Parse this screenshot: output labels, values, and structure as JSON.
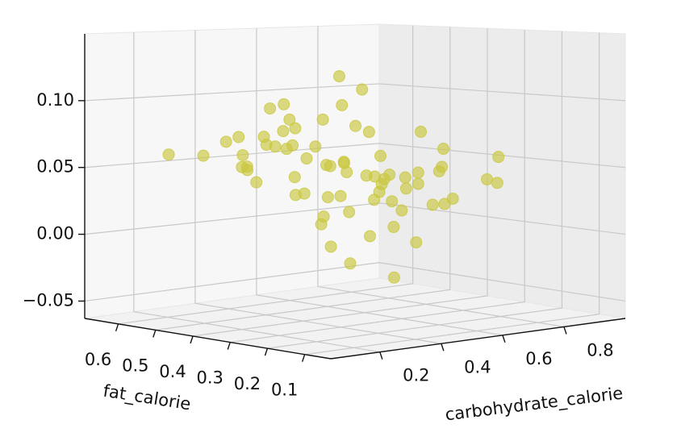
{
  "chart_data": {
    "type": "scatter3d",
    "x_label": "carbohydrate_calorie",
    "y_label": "fat_calorie",
    "xlim": [
      0.04,
      1.0
    ],
    "ylim": [
      0.03,
      0.69
    ],
    "zlim": [
      -0.063,
      0.15
    ],
    "xticks": [
      0.2,
      0.4,
      0.6,
      0.8
    ],
    "yticks": [
      0.1,
      0.2,
      0.3,
      0.4,
      0.5,
      0.6
    ],
    "zticks": [
      {
        "value": -0.05,
        "label": "−0.05"
      },
      {
        "value": 0,
        "label": "0.00"
      },
      {
        "value": 0.05,
        "label": "0.05"
      },
      {
        "value": 0.1,
        "label": "0.10"
      }
    ],
    "grid": true,
    "series": [
      {
        "color": "#c9c73d",
        "x": [
          0.42,
          0.35,
          0.51,
          0.28,
          0.47,
          0.39,
          0.55,
          0.31,
          0.44,
          0.6,
          0.37,
          0.49,
          0.25,
          0.53,
          0.41,
          0.33,
          0.58,
          0.46,
          0.3,
          0.62,
          0.4,
          0.36,
          0.52,
          0.27,
          0.45,
          0.57,
          0.34,
          0.48,
          0.22,
          0.65,
          0.43,
          0.38,
          0.5,
          0.29,
          0.56,
          0.32,
          0.47,
          0.61,
          0.26,
          0.44,
          0.54,
          0.35,
          0.4,
          0.7,
          0.2,
          0.48,
          0.36,
          0.59,
          0.31,
          0.45,
          0.78,
          0.18,
          0.52,
          0.42,
          0.66,
          0.24,
          0.49,
          0.39,
          0.57,
          0.33,
          0.85,
          0.15,
          0.46,
          0.72,
          0.3,
          0.55,
          0.41,
          0.63,
          0.27,
          0.5
        ],
        "y": [
          0.3,
          0.35,
          0.28,
          0.4,
          0.22,
          0.33,
          0.25,
          0.38,
          0.31,
          0.2,
          0.42,
          0.27,
          0.45,
          0.3,
          0.36,
          0.29,
          0.24,
          0.34,
          0.48,
          0.18,
          0.26,
          0.39,
          0.32,
          0.5,
          0.21,
          0.35,
          0.44,
          0.19,
          0.52,
          0.23,
          0.37,
          0.28,
          0.41,
          0.33,
          0.16,
          0.46,
          0.3,
          0.27,
          0.36,
          0.43,
          0.2,
          0.25,
          0.55,
          0.3,
          0.4,
          0.34,
          0.15,
          0.38,
          0.26,
          0.47,
          0.22,
          0.58,
          0.12,
          0.32,
          0.35,
          0.29,
          0.4,
          0.2,
          0.44,
          0.31,
          0.25,
          0.3,
          0.6,
          0.14,
          0.37,
          0.28,
          0.1,
          0.42,
          0.33,
          0.24
        ],
        "z": [
          0.05,
          0.06,
          0.04,
          0.07,
          0.03,
          0.055,
          0.045,
          0.08,
          0.02,
          0.05,
          0.065,
          0.035,
          0.075,
          0.06,
          0.01,
          0.09,
          0.04,
          0.055,
          0.06,
          0.03,
          0.085,
          0.045,
          0,
          0.07,
          0.05,
          0.025,
          0.095,
          0.04,
          0.06,
          0.065,
          0.015,
          0.1,
          0.05,
          0.035,
          0.055,
          0.04,
          0.11,
          -0.005,
          0.07,
          0.03,
          0.08,
          0.06,
          0.045,
          0.02,
          0.055,
          -0.02,
          0.05,
          0.075,
          0.035,
          0.065,
          0.04,
          0.06,
          0.03,
          0.12,
          0.015,
          0.085,
          -0.01,
          0.05,
          0.025,
          0.07,
          0.035,
          0.08,
          0.045,
          0.06,
          0.1,
          -0.03,
          0.055,
          0.04,
          0.09,
          0.01
        ]
      }
    ]
  }
}
